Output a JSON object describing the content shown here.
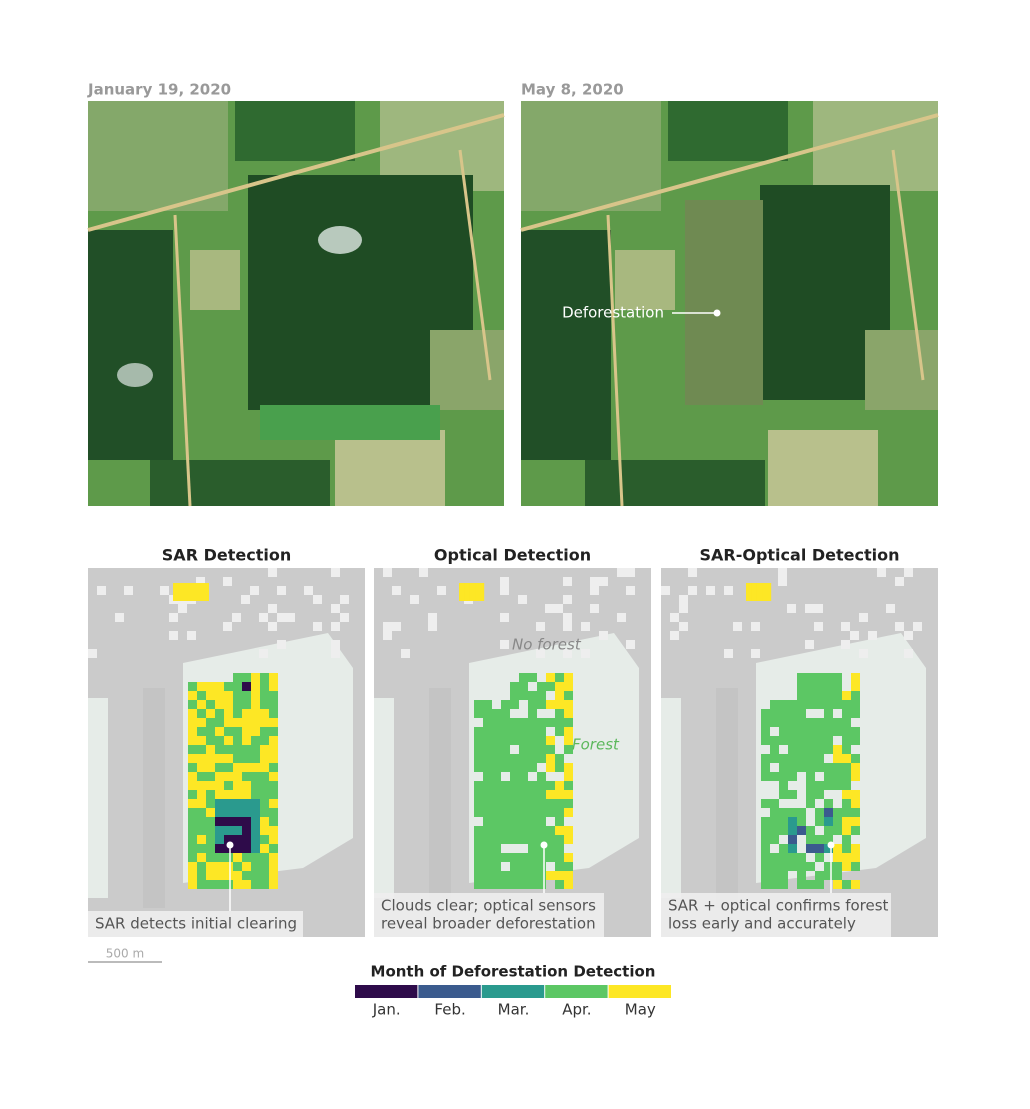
{
  "satellite_images": [
    {
      "date": "January 19, 2020"
    },
    {
      "date": "May 8, 2020",
      "annotation": "Deforestation"
    }
  ],
  "detection_maps": [
    {
      "title": "SAR Detection",
      "caption": [
        "SAR detects initial clearing"
      ]
    },
    {
      "title": "Optical Detection",
      "labels": [
        "No forest",
        "Forest"
      ],
      "caption": [
        "Clouds clear; optical sensors",
        "reveal broader deforestation"
      ]
    },
    {
      "title": "SAR-Optical Detection",
      "caption": [
        "SAR + optical confirms forest",
        "loss early and accurately"
      ]
    }
  ],
  "scale_bar": "500 m",
  "legend": {
    "title": "Month of Deforestation Detection",
    "items": [
      {
        "label": "Jan.",
        "color": "#2e0b4a"
      },
      {
        "label": "Feb.",
        "color": "#3b5b8e"
      },
      {
        "label": "Mar.",
        "color": "#2a9a8e"
      },
      {
        "label": "Apr.",
        "color": "#5cc764"
      },
      {
        "label": "May",
        "color": "#fde725"
      }
    ]
  }
}
